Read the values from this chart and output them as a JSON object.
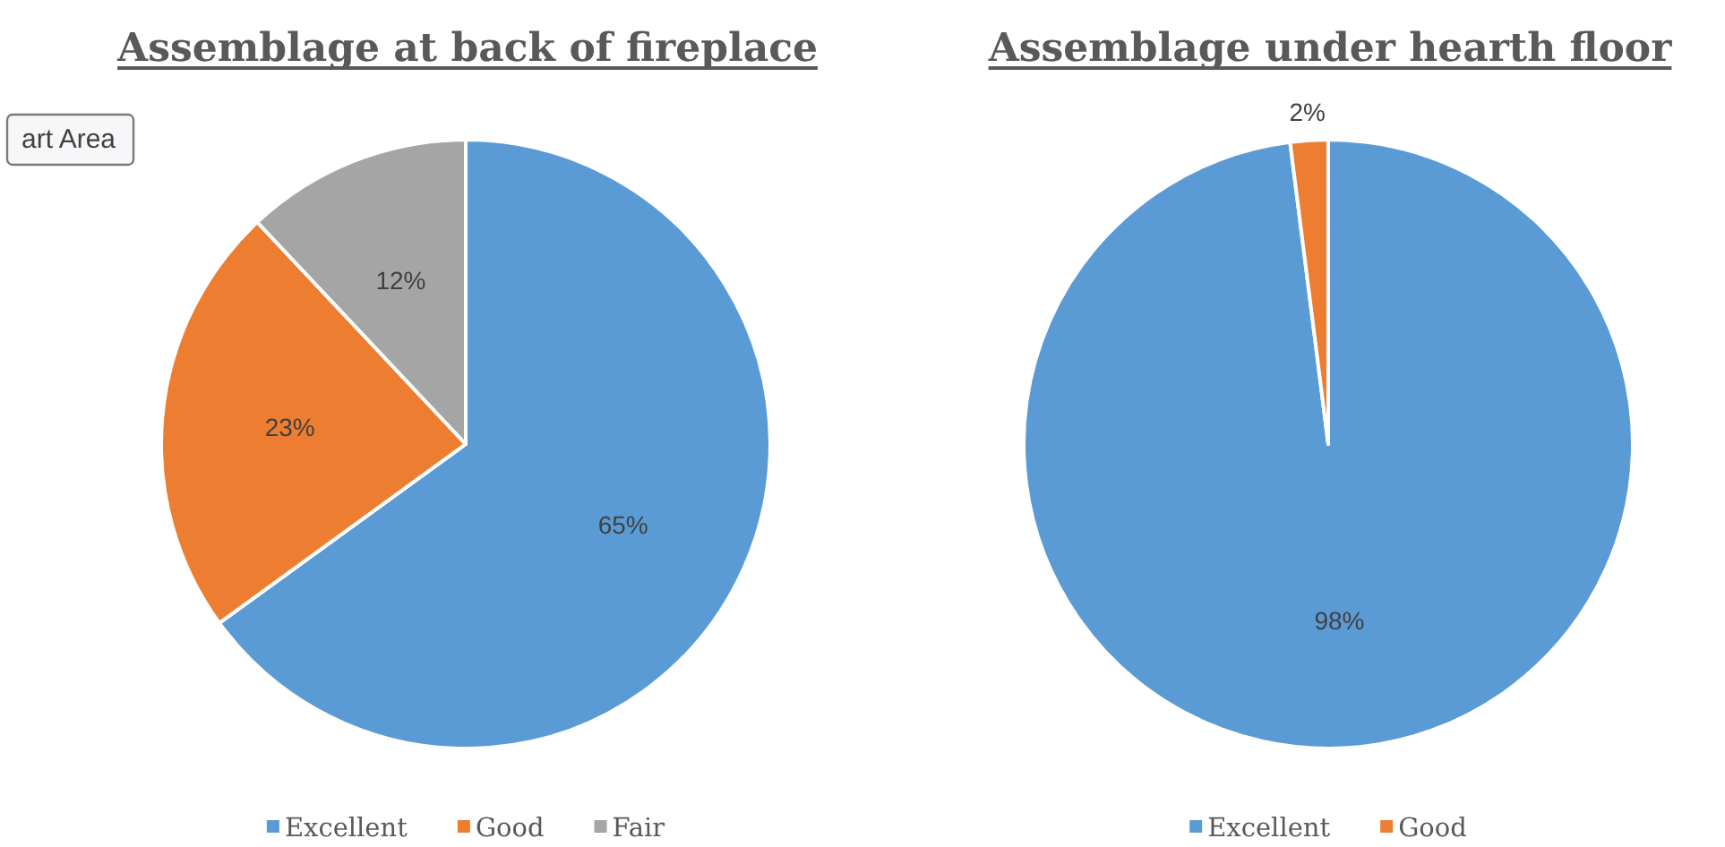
{
  "chart_data": [
    {
      "type": "pie",
      "title": "Assemblage at back of fireplace",
      "categories": [
        "Excellent",
        "Good",
        "Fair"
      ],
      "values": [
        65,
        23,
        12
      ],
      "colors": [
        "#5b9bd5",
        "#ed7d31",
        "#a5a5a5"
      ],
      "value_labels": [
        "65%",
        "23%",
        "12%"
      ],
      "legend": "bottom",
      "annotations": [
        "art Area"
      ]
    },
    {
      "type": "pie",
      "title": "Assemblage under hearth floor",
      "categories": [
        "Excellent",
        "Good"
      ],
      "values": [
        98,
        2
      ],
      "colors": [
        "#5b9bd5",
        "#ed7d31"
      ],
      "value_labels": [
        "98%",
        "2%"
      ],
      "legend": "bottom"
    }
  ]
}
